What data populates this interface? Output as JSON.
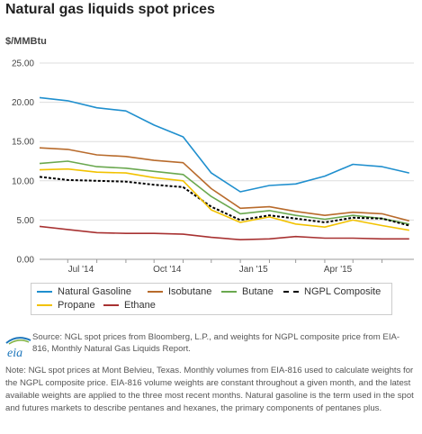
{
  "title": "Natural gas liquids spot prices",
  "unit_label": "$/MMBtu",
  "chart_data": {
    "type": "line",
    "title": "Natural gas liquids spot prices",
    "ylabel": "$/MMBtu",
    "xlabel": "",
    "ylim": [
      0,
      25
    ],
    "yticks": [
      "0.00",
      "5.00",
      "10.00",
      "15.00",
      "20.00",
      "25.00"
    ],
    "xticks": [
      "Jul '14",
      "Oct '14",
      "Jan '15",
      "Apr '15"
    ],
    "x_dates": [
      "2014-06-01",
      "2014-07-01",
      "2014-08-01",
      "2014-09-01",
      "2014-10-01",
      "2014-11-01",
      "2014-12-01",
      "2015-01-01",
      "2015-02-01",
      "2015-03-01",
      "2015-04-01",
      "2015-05-01",
      "2015-06-01",
      "2015-06-30"
    ],
    "x_range": [
      "2014-06-01",
      "2015-07-05"
    ],
    "grid": true,
    "legend_position": "bottom",
    "series": [
      {
        "name": "Natural Gasoline",
        "color": "#1f8fce",
        "dash": false,
        "values": [
          20.6,
          20.2,
          19.3,
          18.9,
          17.1,
          15.6,
          11.0,
          8.6,
          9.4,
          9.6,
          10.6,
          12.1,
          11.8,
          11.0
        ]
      },
      {
        "name": "Isobutane",
        "color": "#b86b2c",
        "dash": false,
        "values": [
          14.2,
          14.0,
          13.3,
          13.1,
          12.6,
          12.3,
          9.0,
          6.5,
          6.7,
          6.1,
          5.6,
          6.0,
          5.8,
          4.9
        ]
      },
      {
        "name": "Butane",
        "color": "#6aa84f",
        "dash": false,
        "values": [
          12.2,
          12.5,
          11.8,
          11.6,
          11.2,
          10.8,
          8.0,
          5.8,
          6.2,
          5.6,
          5.1,
          5.6,
          5.2,
          4.5
        ]
      },
      {
        "name": "NGPL Composite",
        "color": "#000000",
        "dash": true,
        "values": [
          10.5,
          10.1,
          10.0,
          9.9,
          9.5,
          9.2,
          6.7,
          5.0,
          5.6,
          5.2,
          4.7,
          5.3,
          5.2,
          4.3
        ]
      },
      {
        "name": "Propane",
        "color": "#f2c200",
        "dash": false,
        "values": [
          11.4,
          11.5,
          11.1,
          11.0,
          10.4,
          10.0,
          6.3,
          4.7,
          5.4,
          4.5,
          4.1,
          5.0,
          4.3,
          3.7
        ]
      },
      {
        "name": "Ethane",
        "color": "#a83232",
        "dash": false,
        "values": [
          4.2,
          3.8,
          3.4,
          3.3,
          3.3,
          3.2,
          2.8,
          2.5,
          2.6,
          2.9,
          2.7,
          2.7,
          2.6,
          2.6
        ]
      }
    ]
  },
  "source": "Source: NGL spot prices from Bloomberg, L.P., and weights for NGPL composite price from EIA-816, Monthly Natural Gas Liquids Report.",
  "note": "Note: NGL spot prices at Mont Belvieu, Texas. Monthly volumes from EIA-816 used to calculate weights for the NGPL composite price. EIA-816 volume weights are constant throughout a given month, and the latest available weights are applied to the three most recent months. Natural gasoline is the term used in the spot and futures markets to describe pentanes and hexanes, the primary components of pentanes plus.",
  "logo_text": "eia"
}
